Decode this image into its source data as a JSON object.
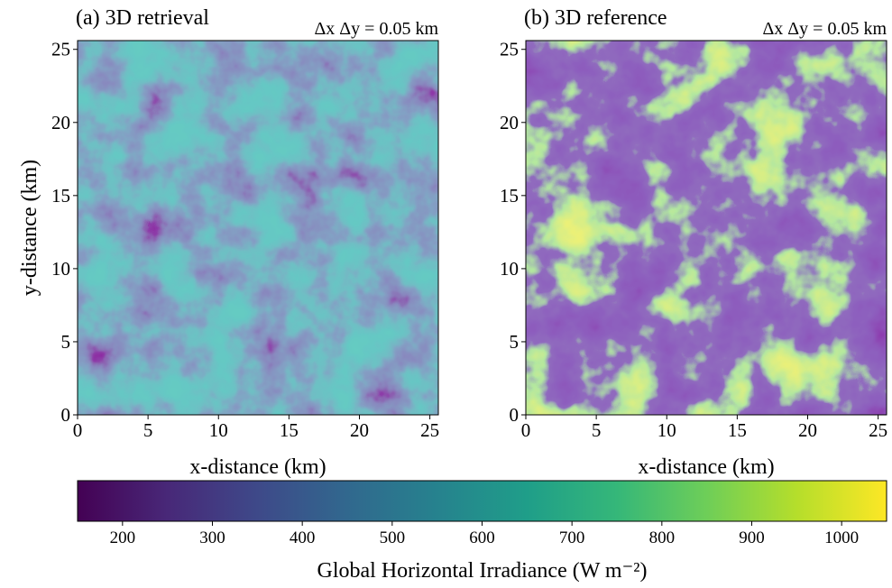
{
  "chart_data": [
    {
      "type": "heatmap",
      "title": "(a) 3D retrieval",
      "annotation": "Δx Δy = 0.05 km",
      "xlabel": "x-distance (km)",
      "ylabel": "y-distance (km)",
      "xlim": [
        0,
        25.6
      ],
      "ylim": [
        0,
        25.6
      ],
      "xticks": [
        0,
        5,
        10,
        15,
        20,
        25
      ],
      "yticks": [
        0,
        5,
        10,
        15,
        20,
        25
      ]
    },
    {
      "type": "heatmap",
      "title": "(b) 3D reference",
      "annotation": "Δx Δy = 0.05 km",
      "xlabel": "x-distance (km)",
      "xlim": [
        0,
        25.6
      ],
      "ylim": [
        0,
        25.6
      ],
      "xticks": [
        0,
        5,
        10,
        15,
        20,
        25
      ],
      "yticks": [
        0,
        5,
        10,
        15,
        20,
        25
      ]
    }
  ],
  "colorbar": {
    "label": "Global Horizontal Irradiance (W m⁻²)",
    "lim": [
      150,
      1050
    ],
    "ticks": [
      200,
      300,
      400,
      500,
      600,
      700,
      800,
      900,
      1000
    ],
    "colormap": "viridis"
  }
}
